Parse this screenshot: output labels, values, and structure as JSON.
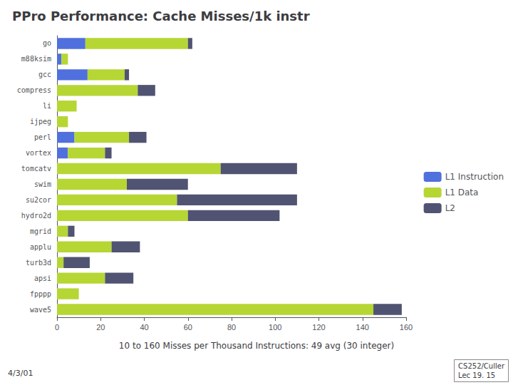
{
  "chart_data": {
    "type": "bar",
    "orientation": "horizontal",
    "stacked": true,
    "title": "PPro Performance: Cache Misses/1k instr",
    "subtitle": "10 to 160 Misses per Thousand Instructions: 49 avg (30 integer)",
    "annotations": [
      "4/3/01",
      "CS252/Culler\nLec 19. 15"
    ],
    "categories": [
      "go",
      "m88ksim",
      "gcc",
      "compress",
      "li",
      "ijpeg",
      "perl",
      "vortex",
      "tomcatv",
      "swim",
      "su2cor",
      "hydro2d",
      "mgrid",
      "applu",
      "turb3d",
      "apsi",
      "fpppp",
      "wave5"
    ],
    "series": [
      {
        "name": "L1 Instruction",
        "values": [
          13,
          2,
          14,
          0,
          0,
          0,
          8,
          5,
          0,
          0,
          0,
          0,
          0,
          0,
          0,
          0,
          0,
          0
        ]
      },
      {
        "name": "L1 Data",
        "values": [
          47,
          3,
          17,
          37,
          9,
          5,
          25,
          17,
          75,
          32,
          55,
          60,
          5,
          25,
          3,
          22,
          10,
          145
        ]
      },
      {
        "name": "L2",
        "values": [
          2,
          0,
          2,
          8,
          0,
          0,
          8,
          3,
          35,
          28,
          55,
          42,
          3,
          13,
          12,
          13,
          0,
          13
        ]
      }
    ],
    "xlim": [
      0,
      160
    ],
    "xticks": [
      0,
      20,
      40,
      60,
      80,
      100,
      120,
      140,
      160
    ],
    "grid": false,
    "legend": "right"
  }
}
